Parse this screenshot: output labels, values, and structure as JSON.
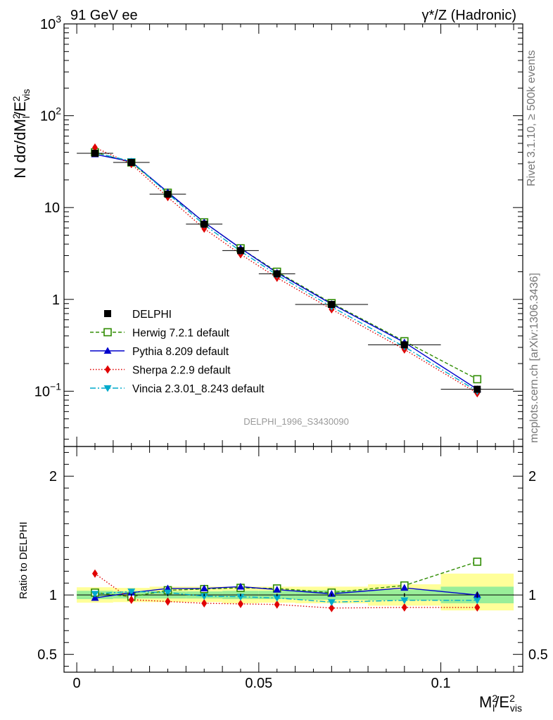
{
  "header": {
    "left_label": "91 GeV ee",
    "right_label": "γ*/Z (Hadronic)"
  },
  "side_labels": {
    "rivet": "Rivet 3.1.10, ≥ 500k events",
    "mcplots": "mcplots.cern.ch [arXiv:1306.3436]"
  },
  "watermark": "DELPHI_1996_S3430090",
  "chart_data": [
    {
      "type": "line",
      "panel": "main",
      "yscale": "log",
      "ylabel": "N dσ/dM_l^2/E_vis^2",
      "ylim": [
        0.025,
        1000
      ],
      "xlim": [
        -0.0035,
        0.1225
      ],
      "y_tick_labels": [
        {
          "value": 0.1,
          "label": "10",
          "exp": "−1"
        },
        {
          "value": 1,
          "label": "1",
          "exp": ""
        },
        {
          "value": 10,
          "label": "10",
          "exp": ""
        },
        {
          "value": 100,
          "label": "10",
          "exp": "2"
        },
        {
          "value": 1000,
          "label": "10",
          "exp": "3"
        }
      ],
      "x": [
        0.005,
        0.015,
        0.025,
        0.035,
        0.045,
        0.055,
        0.07,
        0.09,
        0.11
      ],
      "data": {
        "name": "DELPHI",
        "values": [
          39.0,
          31.0,
          14.0,
          6.6,
          3.4,
          1.9,
          0.88,
          0.32,
          0.105
        ],
        "x_low": [
          0.0,
          0.01,
          0.02,
          0.03,
          0.04,
          0.05,
          0.06,
          0.08,
          0.1
        ],
        "x_high": [
          0.01,
          0.02,
          0.03,
          0.04,
          0.05,
          0.06,
          0.08,
          0.1,
          0.12
        ]
      },
      "series": [
        {
          "name": "Herwig 7.2.1 default",
          "color": "#2e8b00",
          "marker": "open-square",
          "dash": "5,3",
          "values": [
            40.0,
            31.0,
            14.5,
            6.9,
            3.6,
            2.0,
            0.91,
            0.35,
            0.135
          ]
        },
        {
          "name": "Pythia 8.209 default",
          "color": "#0000cc",
          "marker": "triangle-up",
          "dash": "",
          "values": [
            38.0,
            31.6,
            14.7,
            6.9,
            3.6,
            1.95,
            0.89,
            0.34,
            0.105
          ]
        },
        {
          "name": "Sherpa 2.2.9 default",
          "color": "#e00000",
          "marker": "diamond",
          "dash": "1.5,2.5",
          "values": [
            45.0,
            29.8,
            13.0,
            5.9,
            3.1,
            1.72,
            0.78,
            0.285,
            0.095
          ]
        },
        {
          "name": "Vincia 2.3.01_8.243 default",
          "color": "#00aacc",
          "marker": "triangle-down",
          "dash": "8,3,2,3",
          "values": [
            39.5,
            32.0,
            14.2,
            6.5,
            3.35,
            1.85,
            0.83,
            0.305,
            0.1
          ]
        }
      ]
    },
    {
      "type": "line",
      "panel": "ratio",
      "ylabel": "Ratio to DELPHI",
      "xlabel": "M_l^2/E_vis^2",
      "ylim": [
        0.35,
        2.25
      ],
      "y_ticks": [
        0.5,
        1,
        2
      ],
      "y_tick_labels": [
        "0.5",
        "1",
        "2"
      ],
      "x_ticks": [
        0,
        0.05,
        0.1
      ],
      "x_tick_labels": [
        "0",
        "0.05",
        "0.1"
      ],
      "band_yellow": [
        [
          0.935,
          1.065
        ],
        [
          0.94,
          1.06
        ],
        [
          0.94,
          1.07
        ],
        [
          0.94,
          1.07
        ],
        [
          0.93,
          1.07
        ],
        [
          0.935,
          1.07
        ],
        [
          0.93,
          1.07
        ],
        [
          0.91,
          1.09
        ],
        [
          0.87,
          1.18
        ]
      ],
      "band_green": [
        [
          0.965,
          1.035
        ],
        [
          0.97,
          1.03
        ],
        [
          0.97,
          1.03
        ],
        [
          0.97,
          1.03
        ],
        [
          0.965,
          1.035
        ],
        [
          0.965,
          1.035
        ],
        [
          0.96,
          1.04
        ],
        [
          0.955,
          1.045
        ],
        [
          0.93,
          1.07
        ]
      ],
      "data_err": [
        0.0,
        0.01,
        0.01,
        0.01,
        0.01,
        0.01,
        0.01,
        0.015,
        0.025
      ],
      "series": [
        {
          "name": "Herwig 7.2.1 default",
          "values": [
            1.02,
            0.985,
            1.04,
            1.05,
            1.06,
            1.055,
            1.02,
            1.08,
            1.28
          ]
        },
        {
          "name": "Pythia 8.209 default",
          "values": [
            0.975,
            1.02,
            1.055,
            1.055,
            1.07,
            1.045,
            1.01,
            1.06,
            1.0
          ]
        },
        {
          "name": "Sherpa 2.2.9 default",
          "values": [
            1.18,
            0.96,
            0.945,
            0.93,
            0.925,
            0.92,
            0.89,
            0.895,
            0.895
          ]
        },
        {
          "name": "Vincia 2.3.01_8.243 default",
          "values": [
            1.01,
            1.03,
            1.02,
            0.99,
            0.985,
            0.975,
            0.94,
            0.955,
            0.955
          ]
        }
      ]
    }
  ]
}
